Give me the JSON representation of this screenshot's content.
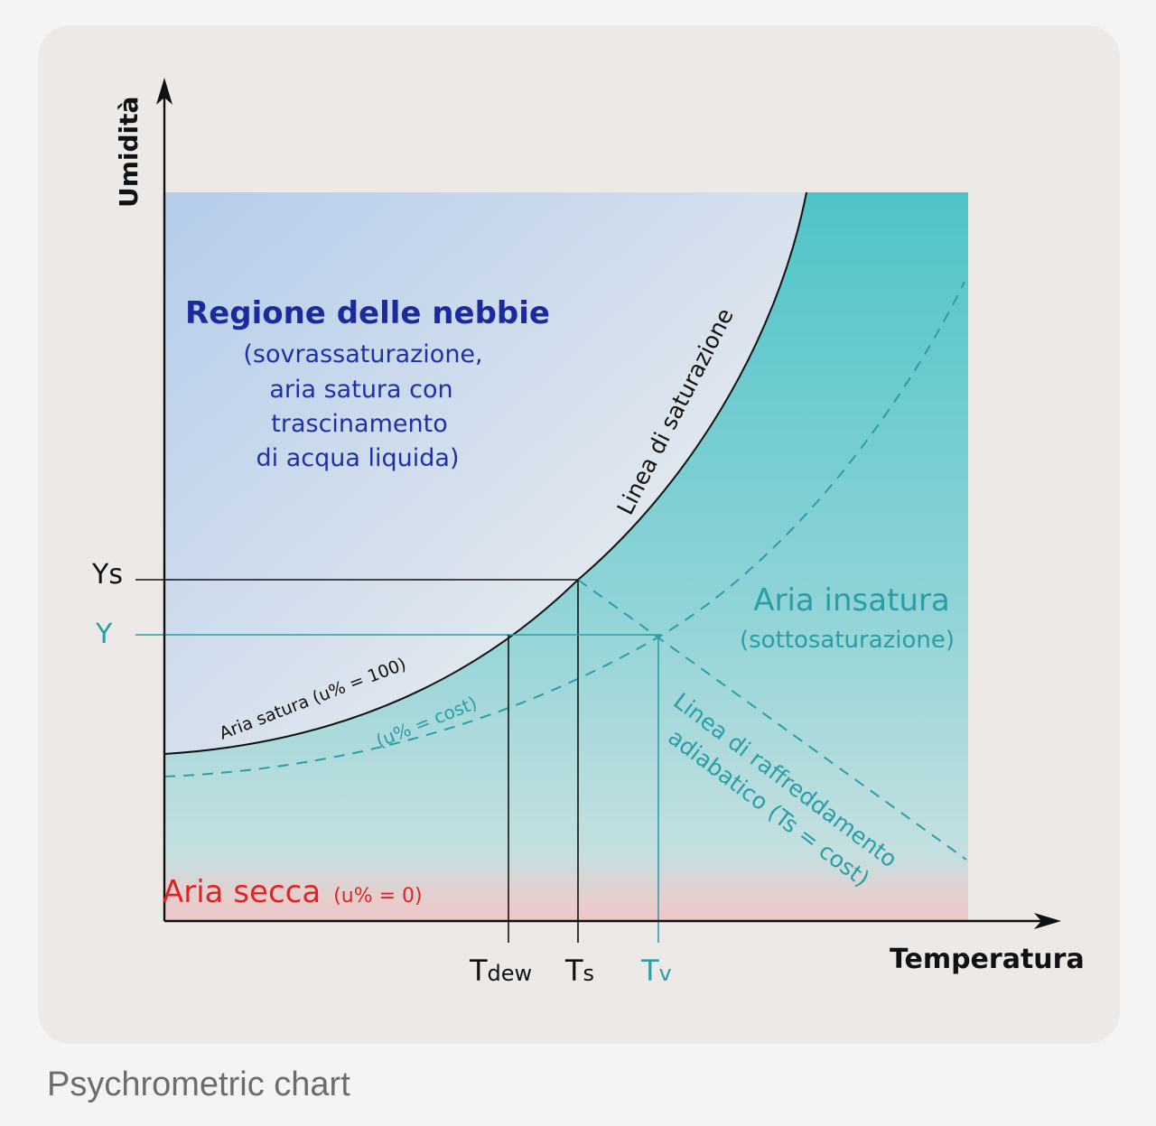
{
  "caption": "Psychrometric chart",
  "axes": {
    "y_label": "Umidità",
    "x_label": "Temperatura"
  },
  "ticks": {
    "ys": "Ys",
    "y": "Y",
    "t_dew_main": "T",
    "t_dew_sub": "dew",
    "t_s_main": "T",
    "t_s_sub": "s",
    "t_v_main": "T",
    "t_v_sub": "v"
  },
  "regions": {
    "fog_title": "Regione delle nebbie",
    "fog_lines": [
      "(sovrassaturazione,",
      "aria satura con",
      "trascinamento",
      "di acqua liquida)"
    ],
    "unsat_title": "Aria insatura",
    "unsat_sub": "(sottosaturazione)",
    "dry_title": "Aria secca",
    "dry_sub": "(u% =  0)"
  },
  "curves": {
    "saturation_line": "Linea di saturazione",
    "saturated_air": "Aria satura (u% = 100)",
    "constant_humidity": "(u% = cost)",
    "adiabatic_line1": "Linea di raffreddamento",
    "adiabatic_line2": "adiabatico (Ts = cost)"
  },
  "colors": {
    "fog_text": "#1c2b9c",
    "teal": "#2a9ea6",
    "dry_red": "#e02424",
    "axis": "#111111"
  }
}
